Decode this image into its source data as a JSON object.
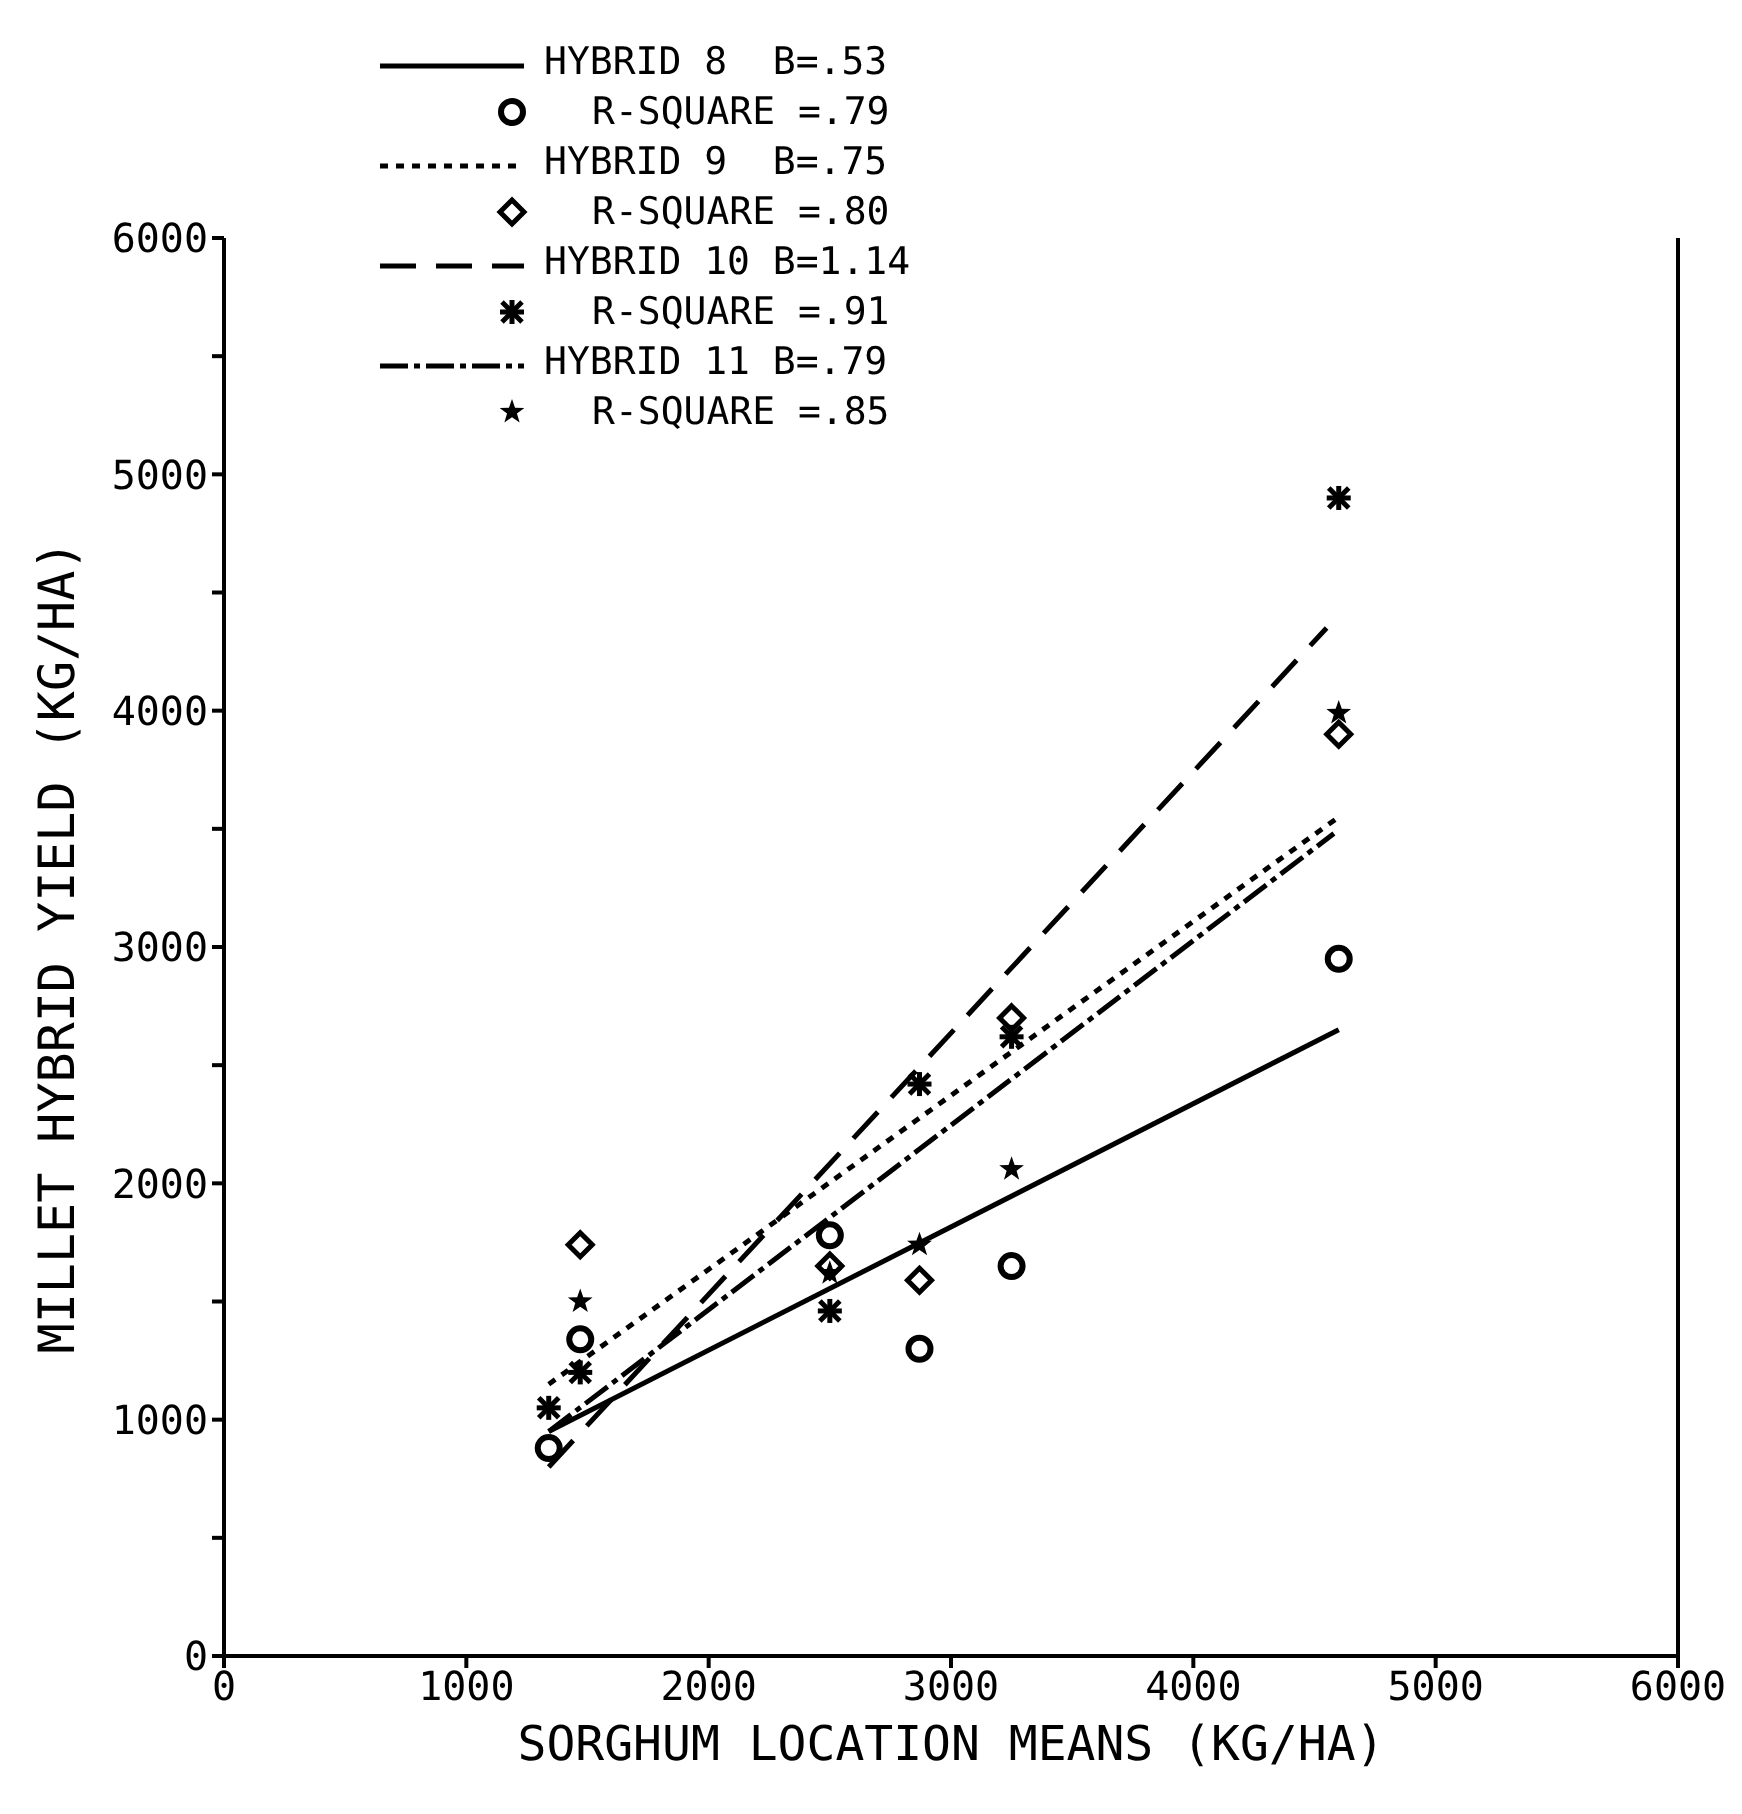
{
  "chart_data": {
    "type": "scatter",
    "xlabel": "SORGHUM LOCATION MEANS  (KG/HA)",
    "ylabel": "MILLET HYBRID YIELD  (KG/HA)",
    "xlim": [
      0,
      6000
    ],
    "xticks": [
      0,
      1000,
      2000,
      3000,
      4000,
      5000,
      6000
    ],
    "ylim": [
      0,
      6000
    ],
    "yticks": [
      0,
      {
        "value": 500,
        "label": null
      },
      1000,
      {
        "value": 1500,
        "label": null
      },
      2000,
      {
        "value": 2500,
        "label": null
      },
      3000,
      {
        "value": 3500,
        "label": null
      },
      4000,
      {
        "value": 4500,
        "label": null
      },
      5000,
      {
        "value": 5500,
        "label": null
      },
      6000
    ],
    "grid": false,
    "legend": "top left",
    "x": [
      1340,
      1470,
      2500,
      2870,
      3250,
      4600
    ],
    "series": [
      {
        "type": "line",
        "name": "HYBRID 8  B=.53",
        "color": "#000000",
        "x": [
          1340,
          4600
        ],
        "values": [
          950,
          2650
        ],
        "line_style": "solid"
      },
      {
        "type": "scatter",
        "name": "R-SQUARE =.79",
        "color": "#000000",
        "values": [
          880,
          1340,
          1780,
          1300,
          1650,
          2950
        ],
        "marker": "circle"
      },
      {
        "type": "line",
        "name": "HYBRID 9  B=.75",
        "color": "#000000",
        "x": [
          1340,
          4600
        ],
        "values": [
          1150,
          3550
        ],
        "line_style": "dotted"
      },
      {
        "type": "scatter",
        "name": "R-SQUARE =.80",
        "color": "#000000",
        "values": [
          null,
          1740,
          1650,
          1590,
          2700,
          3900
        ],
        "marker": "diamond"
      },
      {
        "type": "line",
        "name": "HYBRID 10 B=1.14",
        "color": "#000000",
        "x": [
          1340,
          4550
        ],
        "values": [
          800,
          4350
        ],
        "line_style": "dashed"
      },
      {
        "type": "scatter",
        "name": "R-SQUARE =.91",
        "color": "#000000",
        "values": [
          1050,
          1200,
          1460,
          2420,
          2620,
          4900
        ],
        "marker": "cross"
      },
      {
        "type": "line",
        "name": "HYBRID 11 B=.79",
        "color": "#000000",
        "x": [
          1340,
          4580
        ],
        "values": [
          950,
          3480
        ],
        "line_style": "dashdot"
      },
      {
        "type": "scatter",
        "name": "R-SQUARE =.85",
        "color": "#000000",
        "values": [
          null,
          1500,
          1620,
          1740,
          2060,
          3990
        ],
        "marker": "star"
      }
    ]
  }
}
